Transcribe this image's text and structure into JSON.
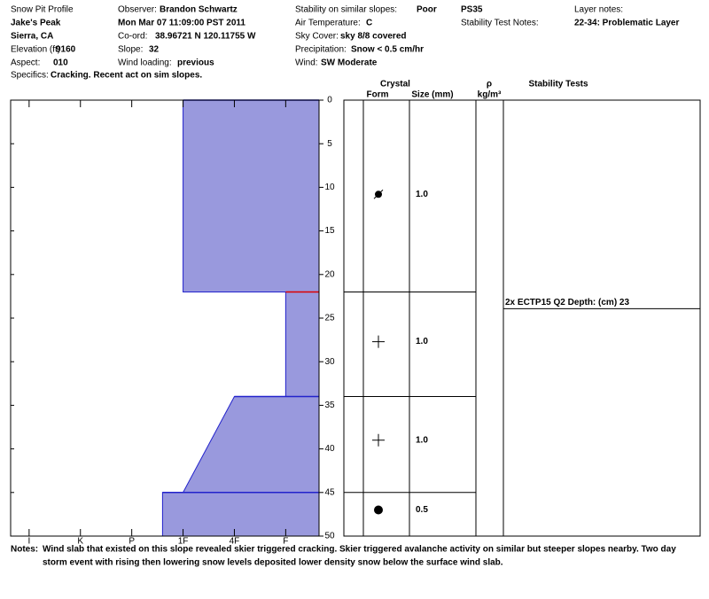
{
  "header": {
    "title": "Snow Pit Profile",
    "location": "Jake's Peak",
    "region": "Sierra, CA",
    "elevation": {
      "label": "Elevation (ft)",
      "value": 9160
    },
    "aspect": {
      "label": "Aspect:",
      "value": "010"
    },
    "specifics": {
      "label": "Specifics:",
      "value": "Cracking. Recent act on sim slopes."
    },
    "observer": {
      "label": "Observer:",
      "value": "Brandon Schwartz"
    },
    "date": "Mon Mar 07 11:09:00 PST 2011",
    "coord": {
      "label": "Co-ord:",
      "value": "38.96721 N 120.11755 W"
    },
    "slope": {
      "label": "Slope:",
      "value": 32
    },
    "wind_loading": {
      "label": "Wind loading:",
      "value": "previous"
    },
    "stability": {
      "label": "Stability on similar slopes:",
      "value": "Poor"
    },
    "air_temperature": {
      "label": "Air Temperature:",
      "value": "C"
    },
    "sky_cover": {
      "label": "Sky Cover:",
      "value": "sky 8/8 covered"
    },
    "precipitation": {
      "label": "Precipitation:",
      "value": "Snow < 0.5 cm/hr"
    },
    "wind": {
      "label": "Wind:",
      "value": "SW Moderate"
    },
    "pit_id": "PS35",
    "stability_test_notes": "Stability Test Notes:",
    "layer_notes": {
      "label": "Layer notes:",
      "value": "22-34: Problematic Layer"
    }
  },
  "chart_data": {
    "type": "hardness-profile",
    "ylim": [
      0,
      50
    ],
    "yticks": [
      0,
      5,
      10,
      15,
      20,
      25,
      30,
      35,
      40,
      45,
      50
    ],
    "xlim": [
      0.64,
      6.65
    ],
    "xticks": [
      {
        "value": 1,
        "label": "I"
      },
      {
        "value": 2,
        "label": "K"
      },
      {
        "value": 3,
        "label": "P"
      },
      {
        "value": 4,
        "label": "1F"
      },
      {
        "value": 5,
        "label": "4F"
      },
      {
        "value": 6,
        "label": "F"
      }
    ],
    "fill": "#9999dd",
    "layers": [
      {
        "top": 0,
        "bottom": 22,
        "hardness_top": 4,
        "hardness_bottom": 4,
        "edge_color": "#2222cc"
      },
      {
        "top": 22,
        "bottom": 34,
        "hardness_top": 6,
        "hardness_bottom": 6,
        "edge_color": "#dd0000"
      },
      {
        "top": 34,
        "bottom": 45,
        "hardness_top": 5,
        "hardness_bottom": 4,
        "edge_color": "#2222cc"
      },
      {
        "top": 45,
        "bottom": 50,
        "hardness_top": 3.6,
        "hardness_bottom": 3.6,
        "edge_color": "#2222cc"
      }
    ]
  },
  "crystal": {
    "title": "Crystal",
    "columns": [
      "Form",
      "Size (mm)"
    ],
    "boundaries": [
      22,
      34,
      45
    ],
    "entries": [
      {
        "depth": 10.8,
        "symbol": "slash-dot",
        "size": "1.0"
      },
      {
        "depth": 27.7,
        "symbol": "plus",
        "size": "1.0"
      },
      {
        "depth": 39,
        "symbol": "plus",
        "size": "1.0"
      },
      {
        "depth": 47,
        "symbol": "dot",
        "size": "0.5"
      }
    ]
  },
  "density": {
    "symbol": "ρ",
    "unit": "kg/m³"
  },
  "stability_tests": {
    "title": "Stability Tests",
    "tests": [
      {
        "depth": 23,
        "label": "2x ECTP15 Q2 Depth: (cm) 23"
      }
    ]
  },
  "notes": {
    "label": "Notes:",
    "lines": [
      "Wind slab that existed on this slope revealed skier triggered cracking. Skier triggered avalanche activity on similar but steeper slopes nearby. Two day",
      "storm event  with rising then lowering snow levels deposited lower density snow below the surface wind slab."
    ]
  }
}
